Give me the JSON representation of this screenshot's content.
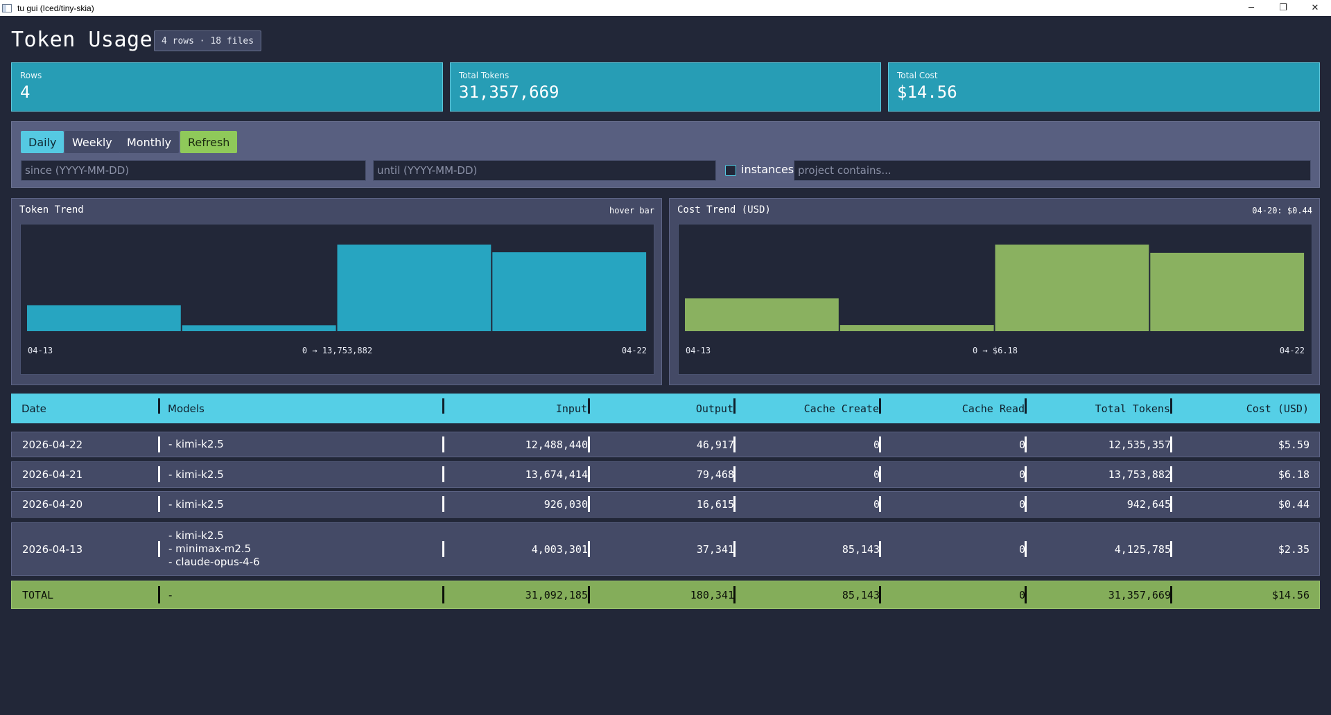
{
  "window": {
    "title": "tu gui (Iced/tiny-skia)",
    "controls": {
      "minimize": "─",
      "restore": "❐",
      "close": "✕"
    }
  },
  "header": {
    "title": "Token Usage",
    "badge": "4 rows · 18 files"
  },
  "stats": [
    {
      "label": "Rows",
      "value": "4"
    },
    {
      "label": "Total Tokens",
      "value": "31,357,669"
    },
    {
      "label": "Total Cost",
      "value": "$14.56"
    }
  ],
  "filters": {
    "buttons": {
      "daily": "Daily",
      "weekly": "Weekly",
      "monthly": "Monthly",
      "refresh": "Refresh"
    },
    "active": "Daily",
    "since_placeholder": "since (YYYY-MM-DD)",
    "until_placeholder": "until (YYYY-MM-DD)",
    "instances_label": "instances",
    "instances_checked": false,
    "project_placeholder": "project contains..."
  },
  "charts": {
    "token": {
      "title": "Token Trend",
      "note": "hover bar",
      "x_start": "04-13",
      "x_end": "04-22",
      "range_label": "0 → 13,753,882",
      "color": "#27a5c1"
    },
    "cost": {
      "title": "Cost Trend (USD)",
      "note": "04-20: $0.44",
      "x_start": "04-13",
      "x_end": "04-22",
      "range_label": "0 → $6.18",
      "color": "#8ab160"
    }
  },
  "chart_data": [
    {
      "type": "bar",
      "title": "Token Trend",
      "categories": [
        "04-13",
        "04-20",
        "04-21",
        "04-22"
      ],
      "values": [
        4125785,
        942645,
        13753882,
        12535357
      ],
      "ylim": [
        0,
        13753882
      ]
    },
    {
      "type": "bar",
      "title": "Cost Trend (USD)",
      "categories": [
        "04-13",
        "04-20",
        "04-21",
        "04-22"
      ],
      "values": [
        2.35,
        0.44,
        6.18,
        5.59
      ],
      "ylim": [
        0,
        6.18
      ]
    }
  ],
  "table": {
    "columns": [
      "Date",
      "Models",
      "Input",
      "Output",
      "Cache Create",
      "Cache Read",
      "Total Tokens",
      "Cost (USD)"
    ],
    "rows": [
      {
        "date": "2026-04-22",
        "models": [
          "- kimi-k2.5"
        ],
        "input": "12,488,440",
        "output": "46,917",
        "cache_create": "0",
        "cache_read": "0",
        "total": "12,535,357",
        "cost": "$5.59"
      },
      {
        "date": "2026-04-21",
        "models": [
          "- kimi-k2.5"
        ],
        "input": "13,674,414",
        "output": "79,468",
        "cache_create": "0",
        "cache_read": "0",
        "total": "13,753,882",
        "cost": "$6.18"
      },
      {
        "date": "2026-04-20",
        "models": [
          "- kimi-k2.5"
        ],
        "input": "926,030",
        "output": "16,615",
        "cache_create": "0",
        "cache_read": "0",
        "total": "942,645",
        "cost": "$0.44"
      },
      {
        "date": "2026-04-13",
        "models": [
          "- kimi-k2.5",
          "- minimax-m2.5",
          "- claude-opus-4-6"
        ],
        "input": "4,003,301",
        "output": "37,341",
        "cache_create": "85,143",
        "cache_read": "0",
        "total": "4,125,785",
        "cost": "$2.35"
      }
    ],
    "total": {
      "date": "TOTAL",
      "models": "-",
      "input": "31,092,185",
      "output": "180,341",
      "cache_create": "85,143",
      "cache_read": "0",
      "total": "31,357,669",
      "cost": "$14.56"
    }
  }
}
